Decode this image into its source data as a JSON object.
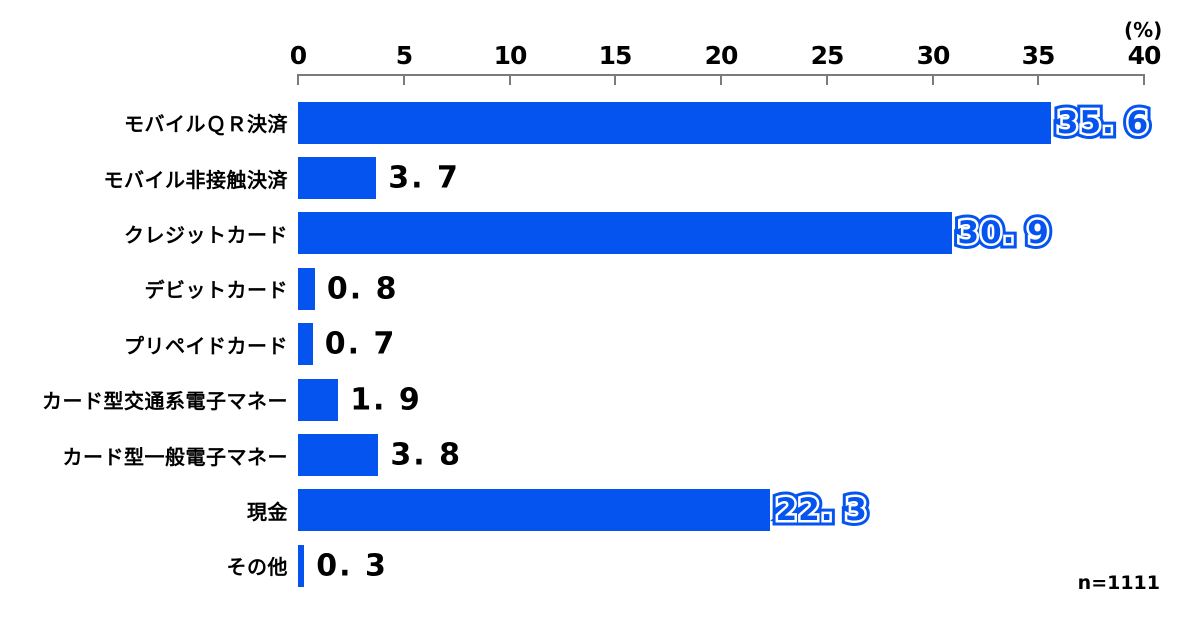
{
  "chart": {
    "unit_label": "(%)",
    "ticks": [
      "0",
      "5",
      "10",
      "15",
      "20",
      "25",
      "30",
      "35",
      "40"
    ],
    "sample_note": "n=1111",
    "bar_color": "#0554F0",
    "axis_color": "#7b7b7b"
  },
  "rows": [
    {
      "label": "モバイルＱＲ決済",
      "value": 35.6,
      "display": "35.6",
      "emphasized": true
    },
    {
      "label": "モバイル非接触決済",
      "value": 3.7,
      "display": "3.7",
      "emphasized": false
    },
    {
      "label": "クレジットカード",
      "value": 30.9,
      "display": "30.9",
      "emphasized": true
    },
    {
      "label": "デビットカード",
      "value": 0.8,
      "display": "0.8",
      "emphasized": false
    },
    {
      "label": "プリペイドカード",
      "value": 0.7,
      "display": "0.7",
      "emphasized": false
    },
    {
      "label": "カード型交通系電子マネー",
      "value": 1.9,
      "display": "1.9",
      "emphasized": false
    },
    {
      "label": "カード型一般電子マネー",
      "value": 3.8,
      "display": "3.8",
      "emphasized": false
    },
    {
      "label": "現金",
      "value": 22.3,
      "display": "22.3",
      "emphasized": true
    },
    {
      "label": "その他",
      "value": 0.3,
      "display": "0.3",
      "emphasized": false
    }
  ],
  "chart_data": {
    "type": "bar",
    "orientation": "horizontal",
    "title": "",
    "xlabel": "(%)",
    "ylabel": "",
    "xlim": [
      0,
      40
    ],
    "x_ticks": [
      0,
      5,
      10,
      15,
      20,
      25,
      30,
      35,
      40
    ],
    "categories": [
      "モバイルＱＲ決済",
      "モバイル非接触決済",
      "クレジットカード",
      "デビットカード",
      "プリペイドカード",
      "カード型交通系電子マネー",
      "カード型一般電子マネー",
      "現金",
      "その他"
    ],
    "values": [
      35.6,
      3.7,
      30.9,
      0.8,
      0.7,
      1.9,
      3.8,
      22.3,
      0.3
    ],
    "emphasized_values": [
      35.6,
      30.9,
      22.3
    ],
    "bar_color": "#0554F0",
    "grid": false,
    "legend": null,
    "annotations": [
      "n=1111"
    ],
    "axis_position": "top"
  }
}
